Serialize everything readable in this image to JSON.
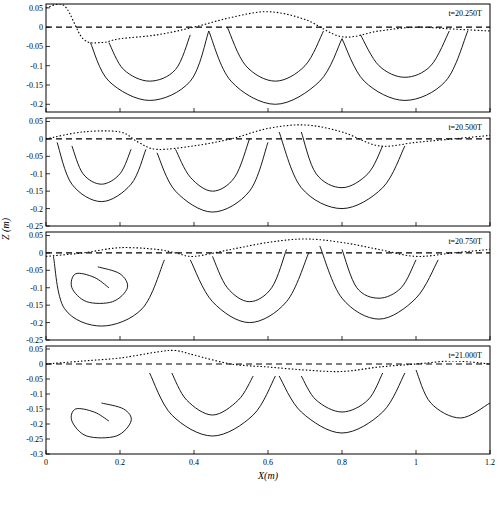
{
  "chart_data": [
    {
      "type": "line",
      "title": "t=20.250T",
      "xlim": [
        0,
        1.2
      ],
      "ylim": [
        -0.22,
        0.06
      ],
      "xticks": [
        0,
        0.2,
        0.4,
        0.6,
        0.8,
        1,
        1.2
      ],
      "yticks": [
        0.05,
        0,
        -0.05,
        -0.1,
        -0.15,
        -0.2
      ],
      "tick_labels": "y",
      "series": [
        {
          "color": "#000000",
          "line_style": "dashed",
          "x": [
            0,
            1.2
          ],
          "values": [
            0,
            0
          ]
        },
        {
          "color": "#000000",
          "line_style": "dotted",
          "x": [
            0,
            0.05,
            0.1,
            0.15,
            0.2,
            0.3,
            0.4,
            0.5,
            0.6,
            0.7,
            0.8,
            0.9,
            1.0,
            1.1,
            1.2
          ],
          "values": [
            0.05,
            0.055,
            -0.03,
            -0.04,
            -0.03,
            -0.02,
            0.0,
            0.025,
            0.04,
            0.02,
            -0.025,
            -0.01,
            0.0,
            -0.005,
            -0.01
          ]
        },
        {
          "color": "#000000",
          "line_style": "solid",
          "x": [
            0.12,
            0.17,
            0.28,
            0.39,
            0.44
          ],
          "values": [
            -0.04,
            -0.14,
            -0.19,
            -0.14,
            -0.01
          ]
        },
        {
          "color": "#000000",
          "line_style": "solid",
          "x": [
            0.17,
            0.21,
            0.28,
            0.35,
            0.39
          ],
          "values": [
            -0.04,
            -0.11,
            -0.14,
            -0.11,
            -0.02
          ]
        },
        {
          "color": "#000000",
          "line_style": "solid",
          "x": [
            0.44,
            0.5,
            0.62,
            0.74,
            0.8
          ],
          "values": [
            -0.01,
            -0.14,
            -0.2,
            -0.14,
            -0.03
          ]
        },
        {
          "color": "#000000",
          "line_style": "solid",
          "x": [
            0.49,
            0.54,
            0.62,
            0.7,
            0.75
          ],
          "values": [
            0.0,
            -0.1,
            -0.14,
            -0.1,
            -0.01
          ]
        },
        {
          "color": "#000000",
          "line_style": "solid",
          "x": [
            0.8,
            0.86,
            0.97,
            1.08,
            1.14
          ],
          "values": [
            -0.03,
            -0.14,
            -0.19,
            -0.14,
            -0.01
          ]
        },
        {
          "color": "#000000",
          "line_style": "solid",
          "x": [
            0.85,
            0.9,
            0.97,
            1.04,
            1.09
          ],
          "values": [
            -0.02,
            -0.1,
            -0.13,
            -0.1,
            -0.01
          ]
        }
      ]
    },
    {
      "type": "line",
      "title": "t=20.500T",
      "xlim": [
        0,
        1.2
      ],
      "ylim": [
        -0.25,
        0.06
      ],
      "xticks": [
        0,
        0.2,
        0.4,
        0.6,
        0.8,
        1,
        1.2
      ],
      "yticks": [
        0.05,
        0,
        -0.05,
        -0.1,
        -0.15,
        -0.2,
        -0.25
      ],
      "tick_labels": "y",
      "series": [
        {
          "color": "#000000",
          "line_style": "dashed",
          "x": [
            0,
            1.2
          ],
          "values": [
            0,
            0
          ]
        },
        {
          "color": "#000000",
          "line_style": "dotted",
          "x": [
            0,
            0.1,
            0.2,
            0.25,
            0.3,
            0.4,
            0.5,
            0.6,
            0.7,
            0.8,
            0.9,
            1.0,
            1.1,
            1.2
          ],
          "values": [
            0.0,
            0.02,
            0.02,
            -0.01,
            -0.03,
            -0.02,
            0.0,
            0.03,
            0.04,
            0.02,
            -0.02,
            -0.01,
            0.0,
            0.01
          ]
        },
        {
          "color": "#000000",
          "line_style": "solid",
          "x": [
            0.03,
            0.07,
            0.15,
            0.23,
            0.27
          ],
          "values": [
            -0.01,
            -0.13,
            -0.18,
            -0.13,
            -0.03
          ]
        },
        {
          "color": "#000000",
          "line_style": "solid",
          "x": [
            0.07,
            0.1,
            0.15,
            0.2,
            0.23
          ],
          "values": [
            -0.02,
            -0.1,
            -0.13,
            -0.1,
            -0.03
          ]
        },
        {
          "color": "#000000",
          "line_style": "solid",
          "x": [
            0.3,
            0.35,
            0.45,
            0.55,
            0.6
          ],
          "values": [
            -0.04,
            -0.15,
            -0.21,
            -0.15,
            -0.01
          ]
        },
        {
          "color": "#000000",
          "line_style": "solid",
          "x": [
            0.35,
            0.39,
            0.45,
            0.51,
            0.55
          ],
          "values": [
            -0.03,
            -0.11,
            -0.15,
            -0.11,
            0.0
          ]
        },
        {
          "color": "#000000",
          "line_style": "solid",
          "x": [
            0.63,
            0.69,
            0.8,
            0.91,
            0.97
          ],
          "values": [
            0.02,
            -0.14,
            -0.2,
            -0.14,
            -0.02
          ]
        },
        {
          "color": "#000000",
          "line_style": "solid",
          "x": [
            0.69,
            0.73,
            0.8,
            0.87,
            0.91
          ],
          "values": [
            0.02,
            -0.1,
            -0.14,
            -0.1,
            -0.02
          ]
        }
      ]
    },
    {
      "type": "line",
      "title": "t=20.750T",
      "xlim": [
        0,
        1.2
      ],
      "ylim": [
        -0.25,
        0.06
      ],
      "xticks": [
        0,
        0.2,
        0.4,
        0.6,
        0.8,
        1,
        1.2
      ],
      "yticks": [
        0.05,
        0,
        -0.05,
        -0.1,
        -0.15,
        -0.2,
        -0.25
      ],
      "tick_labels": "y",
      "series": [
        {
          "color": "#000000",
          "line_style": "dashed",
          "x": [
            0,
            1.2
          ],
          "values": [
            0,
            0
          ]
        },
        {
          "color": "#000000",
          "line_style": "dotted",
          "x": [
            0,
            0.1,
            0.2,
            0.3,
            0.35,
            0.4,
            0.5,
            0.6,
            0.7,
            0.8,
            0.9,
            1.0,
            1.1,
            1.2
          ],
          "values": [
            -0.01,
            0.0,
            0.015,
            0.01,
            0.0,
            -0.01,
            0.01,
            0.03,
            0.04,
            0.03,
            0.01,
            -0.01,
            0.0,
            0.01
          ]
        },
        {
          "color": "#000000",
          "line_style": "solid",
          "x": [
            0.14,
            0.2,
            0.22,
            0.18,
            0.11,
            0.07,
            0.08,
            0.13,
            0.17
          ],
          "values": [
            -0.04,
            -0.06,
            -0.1,
            -0.14,
            -0.14,
            -0.1,
            -0.06,
            -0.07,
            -0.1
          ]
        },
        {
          "color": "#000000",
          "line_style": "solid",
          "x": [
            0.02,
            0.05,
            0.15,
            0.26,
            0.32
          ],
          "values": [
            -0.01,
            -0.16,
            -0.21,
            -0.16,
            -0.02
          ]
        },
        {
          "color": "#000000",
          "line_style": "solid",
          "x": [
            0.39,
            0.45,
            0.55,
            0.65,
            0.71
          ],
          "values": [
            -0.02,
            -0.14,
            -0.2,
            -0.14,
            0.0
          ]
        },
        {
          "color": "#000000",
          "line_style": "solid",
          "x": [
            0.45,
            0.49,
            0.55,
            0.61,
            0.65
          ],
          "values": [
            -0.01,
            -0.1,
            -0.14,
            -0.1,
            0.01
          ]
        },
        {
          "color": "#000000",
          "line_style": "solid",
          "x": [
            0.74,
            0.8,
            0.9,
            1.0,
            1.06
          ],
          "values": [
            0.02,
            -0.13,
            -0.19,
            -0.13,
            -0.02
          ]
        },
        {
          "color": "#000000",
          "line_style": "solid",
          "x": [
            0.8,
            0.84,
            0.9,
            0.96,
            1.0
          ],
          "values": [
            0.01,
            -0.1,
            -0.13,
            -0.1,
            -0.02
          ]
        }
      ]
    },
    {
      "type": "line",
      "title": "t=21.000T",
      "x_label": "X(m)",
      "y_label": "Z (m)",
      "xlim": [
        0,
        1.2
      ],
      "ylim": [
        -0.3,
        0.06
      ],
      "xticks": [
        0,
        0.2,
        0.4,
        0.6,
        0.8,
        1,
        1.2
      ],
      "yticks": [
        0.05,
        0,
        -0.05,
        -0.1,
        -0.15,
        -0.2,
        -0.25,
        -0.3
      ],
      "series": [
        {
          "color": "#000000",
          "line_style": "dashed",
          "x": [
            0,
            1.2
          ],
          "values": [
            0,
            0
          ]
        },
        {
          "color": "#000000",
          "line_style": "dotted",
          "x": [
            0,
            0.1,
            0.2,
            0.3,
            0.35,
            0.4,
            0.5,
            0.6,
            0.7,
            0.8,
            0.9,
            1.0,
            1.1,
            1.2
          ],
          "values": [
            0.0,
            0.01,
            0.02,
            0.04,
            0.045,
            0.03,
            0.0,
            -0.01,
            -0.02,
            -0.025,
            -0.01,
            0.0,
            0.01,
            0.0
          ]
        },
        {
          "color": "#000000",
          "line_style": "solid",
          "x": [
            0.15,
            0.21,
            0.23,
            0.19,
            0.11,
            0.07,
            0.08,
            0.13,
            0.17
          ],
          "values": [
            -0.13,
            -0.15,
            -0.19,
            -0.24,
            -0.24,
            -0.19,
            -0.15,
            -0.16,
            -0.19
          ]
        },
        {
          "color": "#000000",
          "line_style": "solid",
          "x": [
            0.28,
            0.34,
            0.45,
            0.56,
            0.62
          ],
          "values": [
            -0.03,
            -0.17,
            -0.24,
            -0.17,
            -0.04
          ]
        },
        {
          "color": "#000000",
          "line_style": "solid",
          "x": [
            0.34,
            0.38,
            0.45,
            0.52,
            0.56
          ],
          "values": [
            -0.03,
            -0.12,
            -0.17,
            -0.12,
            -0.04
          ]
        },
        {
          "color": "#000000",
          "line_style": "solid",
          "x": [
            0.63,
            0.69,
            0.8,
            0.91,
            0.97
          ],
          "values": [
            -0.04,
            -0.16,
            -0.23,
            -0.16,
            -0.03
          ]
        },
        {
          "color": "#000000",
          "line_style": "solid",
          "x": [
            0.69,
            0.73,
            0.8,
            0.87,
            0.91
          ],
          "values": [
            -0.04,
            -0.12,
            -0.16,
            -0.12,
            -0.03
          ]
        },
        {
          "color": "#000000",
          "line_style": "solid",
          "x": [
            1.0,
            1.04,
            1.12,
            1.2
          ],
          "values": [
            -0.02,
            -0.13,
            -0.18,
            -0.13
          ]
        }
      ]
    }
  ]
}
